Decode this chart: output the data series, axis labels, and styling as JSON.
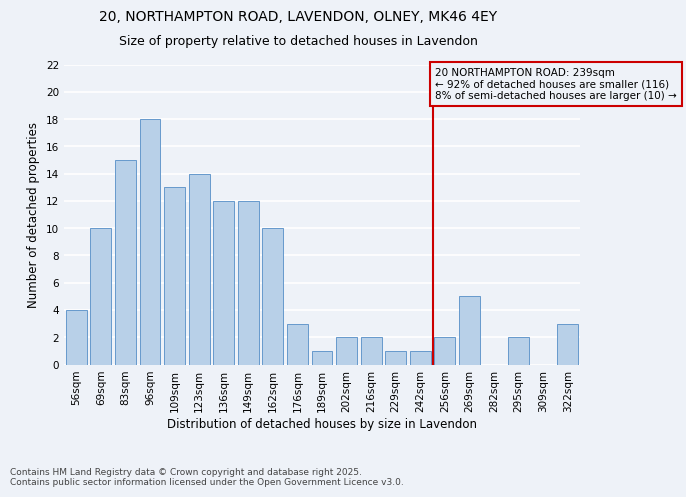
{
  "title1": "20, NORTHAMPTON ROAD, LAVENDON, OLNEY, MK46 4EY",
  "title2": "Size of property relative to detached houses in Lavendon",
  "xlabel": "Distribution of detached houses by size in Lavendon",
  "ylabel": "Number of detached properties",
  "categories": [
    "56sqm",
    "69sqm",
    "83sqm",
    "96sqm",
    "109sqm",
    "123sqm",
    "136sqm",
    "149sqm",
    "162sqm",
    "176sqm",
    "189sqm",
    "202sqm",
    "216sqm",
    "229sqm",
    "242sqm",
    "256sqm",
    "269sqm",
    "282sqm",
    "295sqm",
    "309sqm",
    "322sqm"
  ],
  "values": [
    4,
    10,
    15,
    18,
    13,
    14,
    12,
    12,
    10,
    3,
    1,
    2,
    2,
    1,
    1,
    2,
    5,
    0,
    2,
    0,
    3
  ],
  "bar_color": "#b8d0e8",
  "bar_edge_color": "#6699cc",
  "vline_x_index": 14,
  "vline_color": "#cc0000",
  "annotation_text": "20 NORTHAMPTON ROAD: 239sqm\n← 92% of detached houses are smaller (116)\n8% of semi-detached houses are larger (10) →",
  "annotation_box_color": "#cc0000",
  "ylim": [
    0,
    22
  ],
  "yticks": [
    0,
    2,
    4,
    6,
    8,
    10,
    12,
    14,
    16,
    18,
    20,
    22
  ],
  "footer_text": "Contains HM Land Registry data © Crown copyright and database right 2025.\nContains public sector information licensed under the Open Government Licence v3.0.",
  "bg_color": "#eef2f8",
  "grid_color": "#ffffff",
  "title_fontsize": 10,
  "subtitle_fontsize": 9,
  "axis_label_fontsize": 8.5,
  "tick_fontsize": 7.5,
  "annotation_fontsize": 7.5,
  "footer_fontsize": 6.5
}
